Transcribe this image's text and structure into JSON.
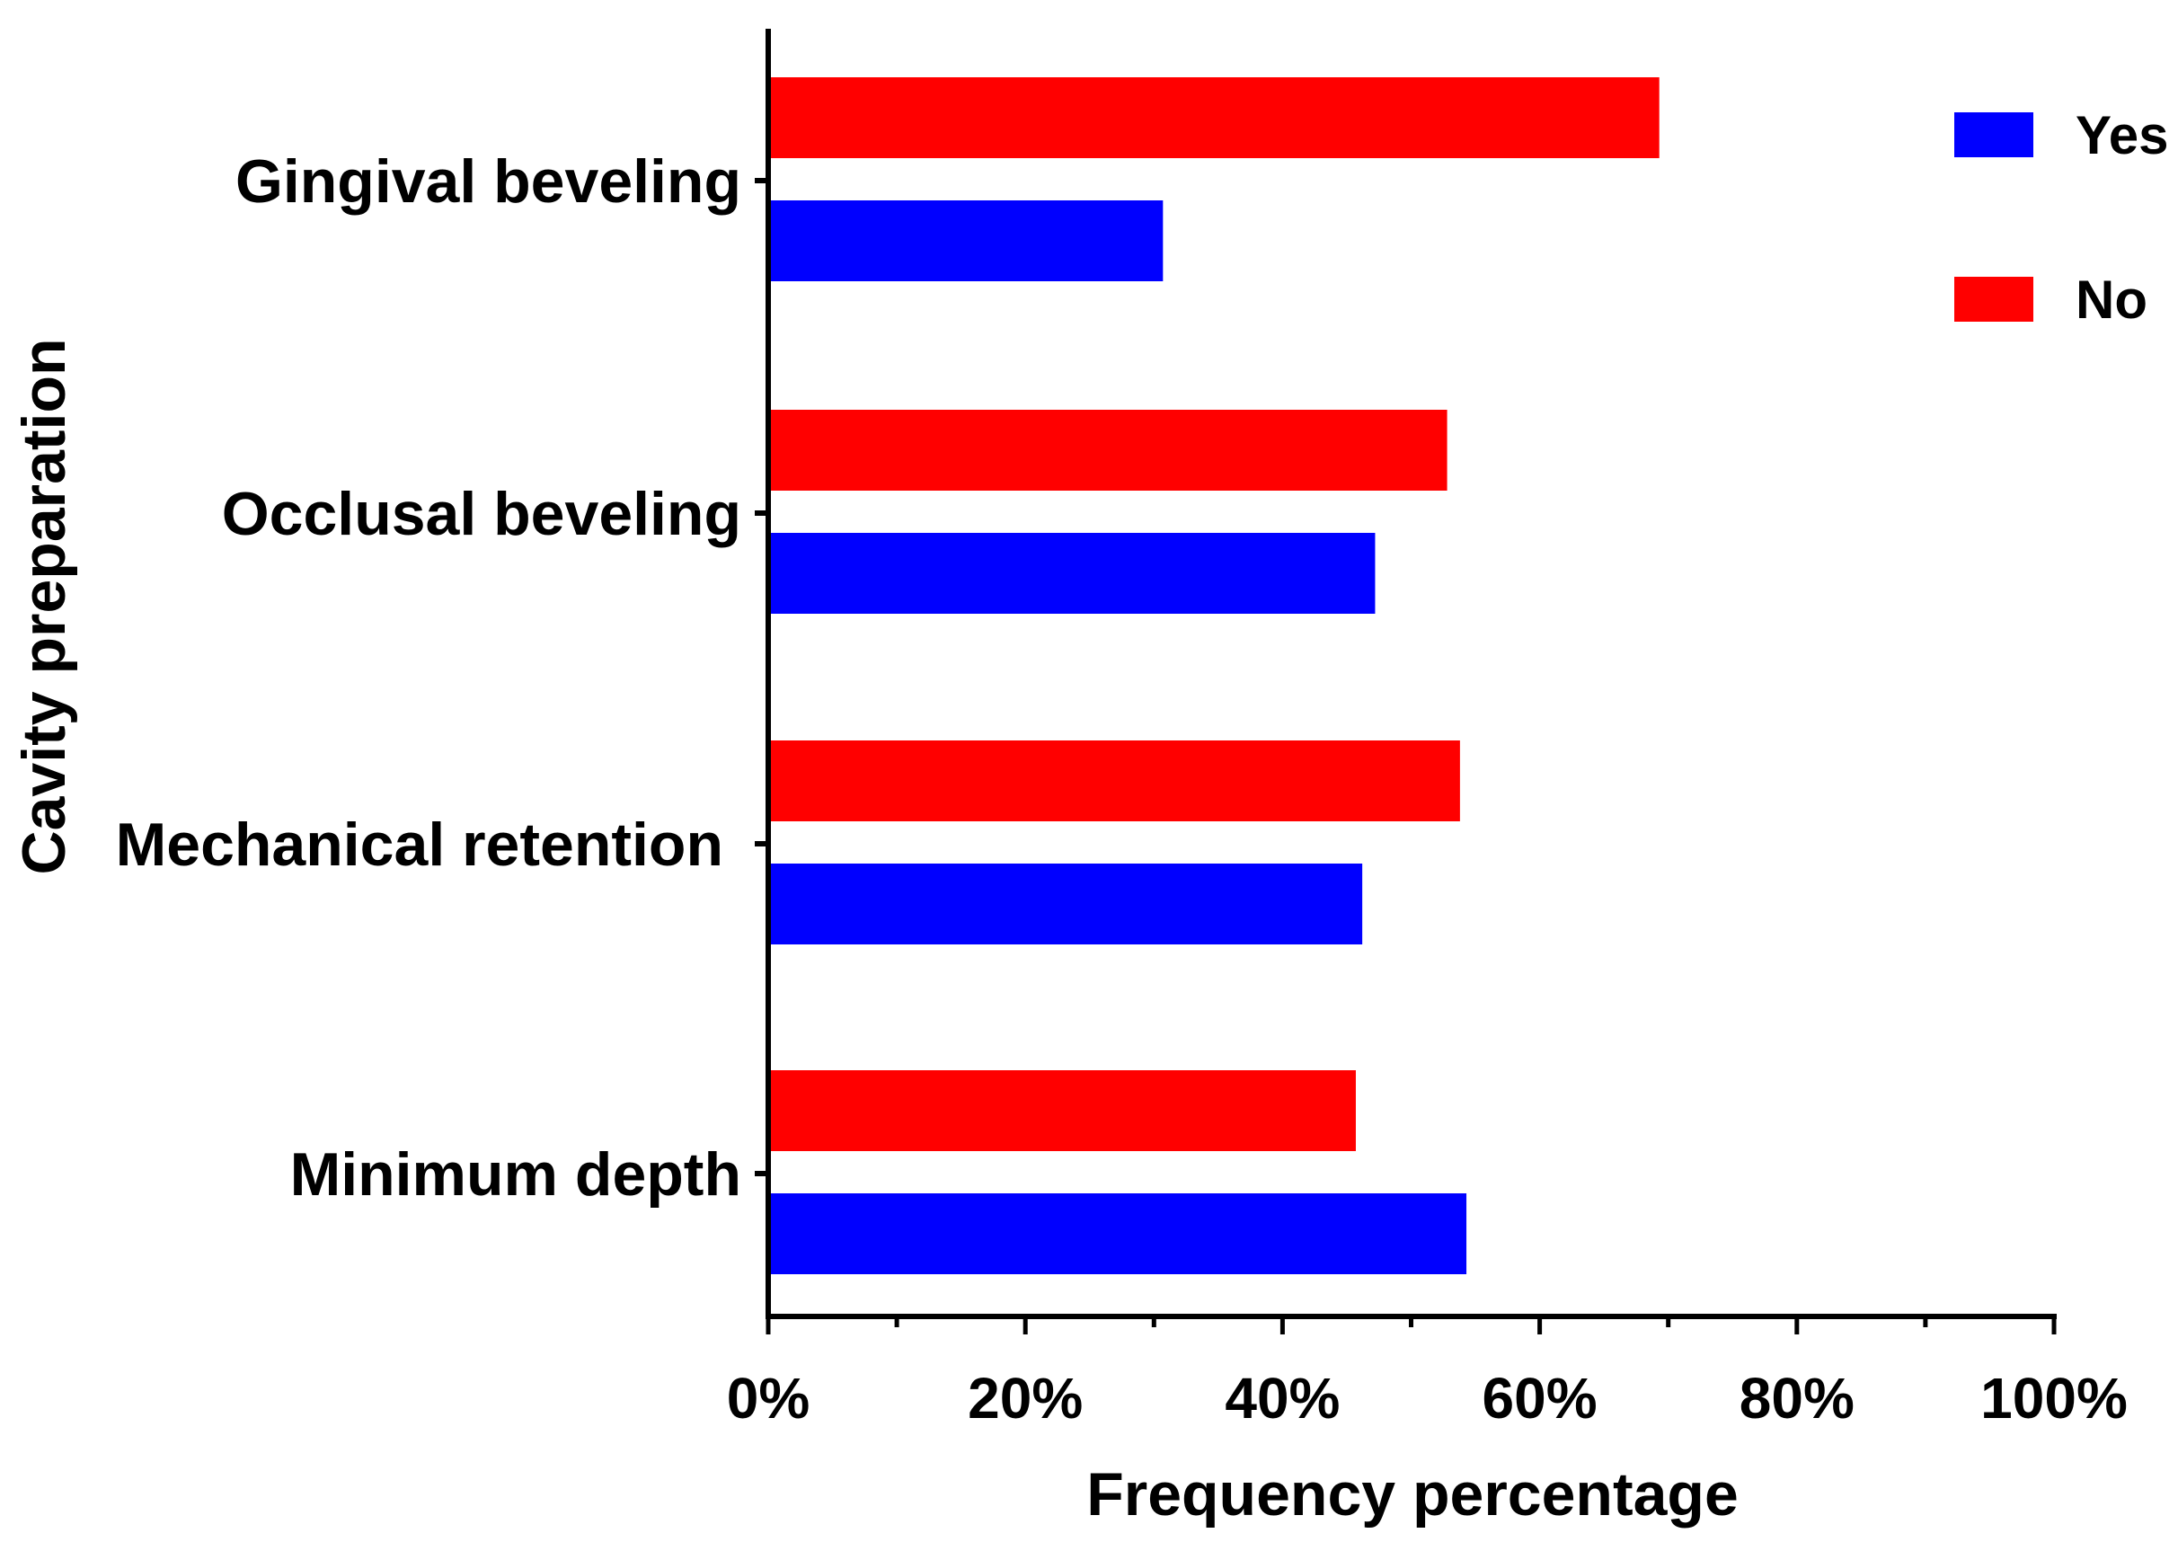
{
  "chart_data": {
    "type": "bar",
    "orientation": "horizontal",
    "categories": [
      "Gingival beveling",
      "Occlusal beveling",
      "Mechanical retention",
      "Minimum depth"
    ],
    "series": [
      {
        "name": "Yes",
        "color": "#0000ff",
        "values": [
          30.7,
          47.2,
          46.2,
          54.3
        ]
      },
      {
        "name": "No",
        "color": "#ff0000",
        "values": [
          69.3,
          52.8,
          53.8,
          45.7
        ]
      }
    ],
    "xlabel": "Frequency percentage",
    "ylabel": "Cavity preparation",
    "xlim": [
      0,
      100
    ],
    "xticks": [
      "0%",
      "20%",
      "40%",
      "60%",
      "80%",
      "100%"
    ],
    "legend": "top-right",
    "grid": false
  }
}
